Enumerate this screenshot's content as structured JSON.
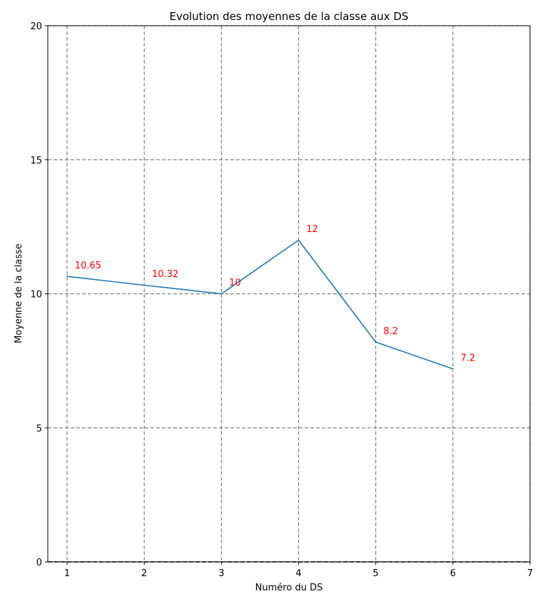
{
  "chart_data": {
    "type": "line",
    "title": "Evolution des moyennes de la classe aux DS",
    "xlabel": "Numéro du DS",
    "ylabel": "Moyenne de la classe",
    "xlim": [
      0.75,
      7
    ],
    "ylim": [
      0,
      20
    ],
    "xticks": [
      1,
      2,
      3,
      4,
      5,
      6,
      7
    ],
    "yticks": [
      0,
      5,
      10,
      15,
      20
    ],
    "grid": true,
    "series": [
      {
        "x": [
          1,
          2,
          3,
          4,
          5,
          6
        ],
        "y": [
          10.65,
          10.32,
          10,
          12,
          8.2,
          7.2
        ],
        "color": "#1f77b4"
      }
    ],
    "annotations": [
      "10.65",
      "10.32",
      "10",
      "12",
      "8.2",
      "7.2"
    ],
    "annotation_color": "#ff0000"
  }
}
